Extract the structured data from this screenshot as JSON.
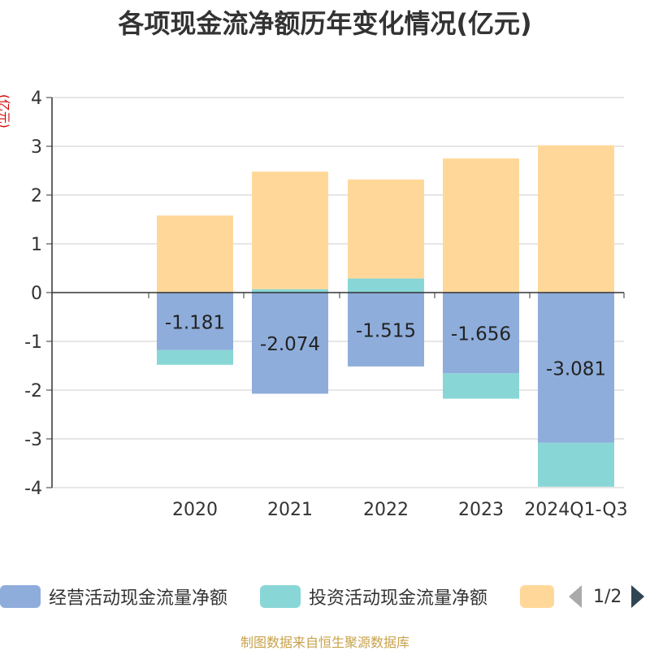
{
  "title": "各项现金流净额历年变化情况(亿元)",
  "unit_label": "(亿元)",
  "footer": "制图数据来自恒生聚源数据库",
  "pager": {
    "text": "1/2"
  },
  "legend": [
    {
      "name": "经营活动现金流量净额",
      "color": "#8eaddb"
    },
    {
      "name": "投资活动现金流量净额",
      "color": "#89d6d6"
    },
    {
      "name": "",
      "color": "#ffd899"
    }
  ],
  "chart_data": {
    "type": "bar",
    "stacked": true,
    "categories": [
      "2020",
      "2021",
      "2022",
      "2023",
      "2024Q1-Q3"
    ],
    "ylim": [
      -4,
      4
    ],
    "yticks": [
      -4,
      -3,
      -2,
      -1,
      0,
      1,
      2,
      3,
      4
    ],
    "grid": true,
    "legend_position": "bottom",
    "series": [
      {
        "name": "经营活动现金流量净额",
        "color": "#8eaddb",
        "values": [
          -1.181,
          -2.074,
          -1.515,
          -1.656,
          -3.081
        ],
        "labels": [
          "-1.181",
          "-2.074",
          "-1.515",
          "-1.656",
          "-3.081"
        ]
      },
      {
        "name": "投资活动现金流量净额",
        "color": "#89d6d6",
        "values": [
          -0.3,
          0.07,
          0.29,
          -0.52,
          -0.9
        ]
      },
      {
        "name": "",
        "color": "#ffd899",
        "values": [
          1.58,
          2.41,
          2.03,
          2.75,
          3.02
        ]
      }
    ]
  }
}
